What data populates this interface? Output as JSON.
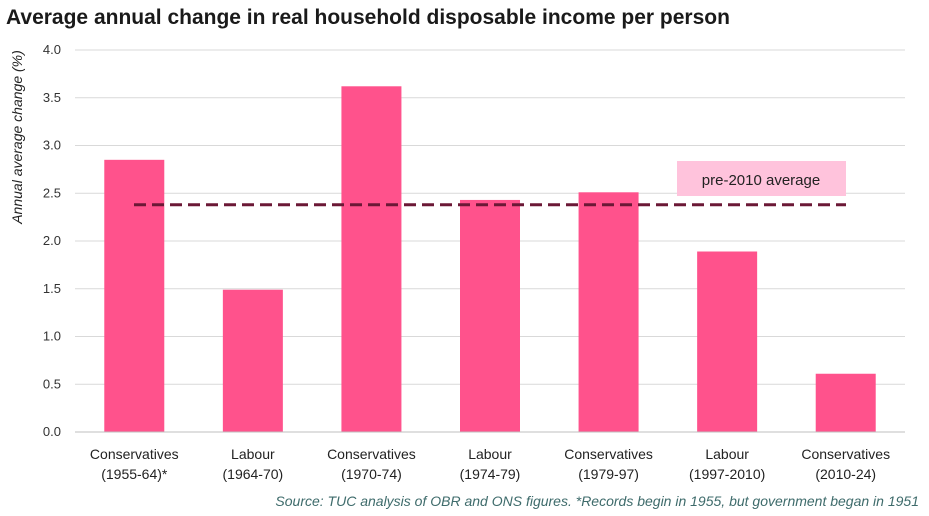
{
  "chart_data": {
    "type": "bar",
    "title": "Average annual change in real household disposable income per person",
    "ylabel": "Annual average change (%)",
    "xlabel": "",
    "ylim": [
      0,
      4
    ],
    "yticks": [
      "0.0",
      "0.5",
      "1.0",
      "1.5",
      "2.0",
      "2.5",
      "3.0",
      "3.5",
      "4.0"
    ],
    "grid": true,
    "categories": [
      [
        "Conservatives",
        "(1955-64)*"
      ],
      [
        "Labour",
        "(1964-70)"
      ],
      [
        "Conservatives",
        "(1970-74)"
      ],
      [
        "Labour",
        "(1974-79)"
      ],
      [
        "Conservatives",
        "(1979-97)"
      ],
      [
        "Labour",
        "(1997-2010)"
      ],
      [
        "Conservatives",
        "(2010-24)"
      ]
    ],
    "values": [
      2.85,
      1.49,
      3.62,
      2.43,
      2.51,
      1.89,
      0.61
    ],
    "reference_line": {
      "label": "pre-2010 average",
      "value": 2.38
    },
    "colors": {
      "bar": "#ff528c",
      "reference_line": "#6b1836",
      "label_box": "#ffc3dc",
      "grid": "#d9d9d9"
    },
    "source": "Source: TUC analysis of OBR and ONS figures. *Records begin in 1955, but government began in 1951"
  }
}
